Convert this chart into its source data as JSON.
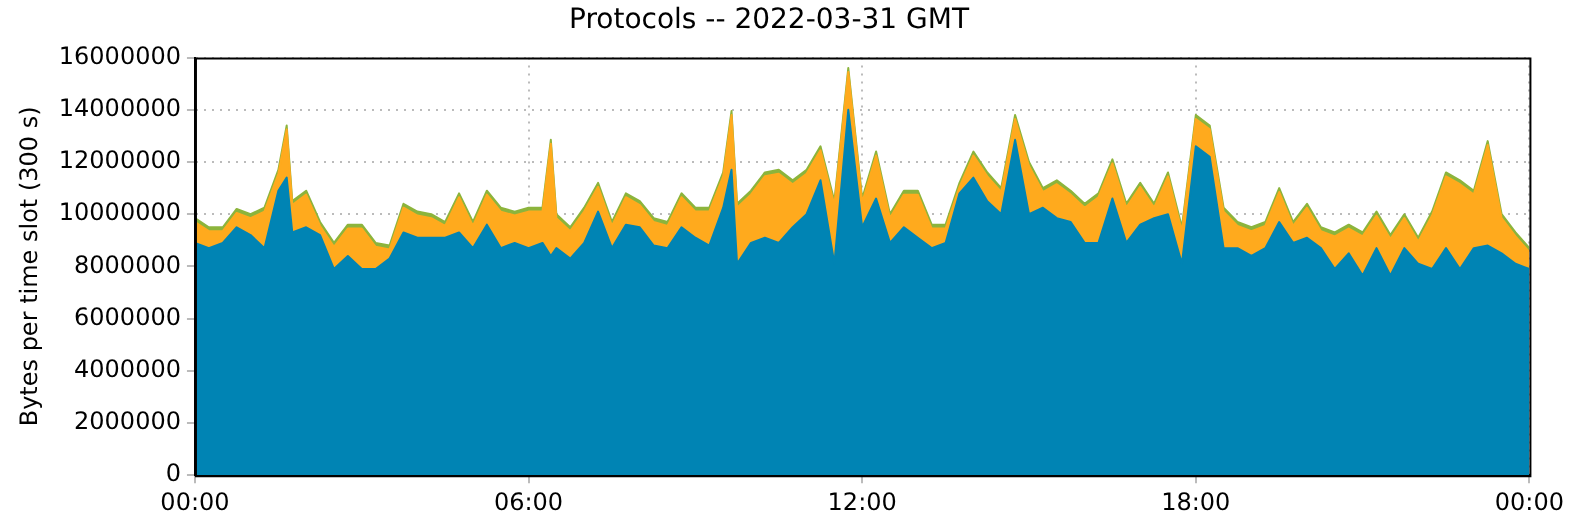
{
  "chart_data": {
    "type": "area",
    "title": "Protocols -- 2022-03-31 GMT",
    "ylabel": "Bytes per time slot (300 s)",
    "stacked": true,
    "grid": true,
    "x": [
      0,
      0.25,
      0.5,
      0.75,
      1,
      1.25,
      1.5,
      1.65,
      1.75,
      2,
      2.25,
      2.5,
      2.75,
      3,
      3.25,
      3.5,
      3.75,
      4,
      4.25,
      4.5,
      4.75,
      5,
      5.25,
      5.5,
      5.75,
      6,
      6.25,
      6.4,
      6.5,
      6.75,
      7,
      7.25,
      7.5,
      7.75,
      8,
      8.25,
      8.5,
      8.75,
      9,
      9.25,
      9.5,
      9.65,
      9.75,
      10,
      10.25,
      10.5,
      10.75,
      11,
      11.25,
      11.5,
      11.75,
      12,
      12.25,
      12.5,
      12.75,
      13,
      13.25,
      13.5,
      13.75,
      14,
      14.25,
      14.5,
      14.75,
      15,
      15.25,
      15.5,
      15.75,
      16,
      16.25,
      16.5,
      16.75,
      17,
      17.25,
      17.5,
      17.75,
      18,
      18.25,
      18.5,
      18.75,
      19,
      19.25,
      19.5,
      19.75,
      20,
      20.25,
      20.5,
      20.75,
      21,
      21.25,
      21.5,
      21.75,
      22,
      22.25,
      22.5,
      22.75,
      23,
      23.25,
      23.5,
      23.75,
      24
    ],
    "series": [
      {
        "color": "#0084b4",
        "values": [
          8900000,
          8700000,
          8900000,
          9500000,
          9200000,
          8700000,
          10900000,
          11400000,
          9300000,
          9500000,
          9200000,
          7900000,
          8400000,
          7900000,
          7900000,
          8300000,
          9300000,
          9100000,
          9100000,
          9100000,
          9300000,
          8700000,
          9600000,
          8700000,
          8900000,
          8700000,
          8900000,
          8400000,
          8700000,
          8300000,
          8900000,
          10100000,
          8700000,
          9600000,
          9500000,
          8800000,
          8700000,
          9500000,
          9100000,
          8800000,
          10250000,
          11700000,
          8100000,
          8900000,
          9100000,
          8900000,
          9500000,
          10000000,
          11300000,
          8100000,
          14000000,
          9500000,
          10600000,
          8900000,
          9500000,
          9100000,
          8700000,
          8900000,
          10800000,
          11400000,
          10500000,
          10000000,
          12850000,
          10000000,
          10250000,
          9850000,
          9700000,
          8900000,
          8900000,
          10600000,
          8900000,
          9600000,
          9850000,
          10000000,
          8100000,
          12600000,
          12200000,
          8700000,
          8700000,
          8400000,
          8700000,
          9700000,
          8900000,
          9100000,
          8700000,
          7900000,
          8500000,
          7650000,
          8700000,
          7650000,
          8700000,
          8100000,
          7900000,
          8700000,
          7900000,
          8700000,
          8800000,
          8500000,
          8100000,
          7900000
        ]
      },
      {
        "color": "#ffaa1d",
        "values": [
          800000,
          650000,
          450000,
          550000,
          650000,
          1400000,
          650000,
          1850000,
          1050000,
          1250000,
          350000,
          850000,
          1050000,
          1550000,
          850000,
          350000,
          950000,
          850000,
          750000,
          450000,
          1350000,
          850000,
          1150000,
          1400000,
          1050000,
          1400000,
          1200000,
          4300000,
          1150000,
          1050000,
          1200000,
          950000,
          850000,
          1050000,
          850000,
          900000,
          850000,
          1150000,
          1000000,
          1300000,
          1200000,
          2100000,
          2150000,
          1850000,
          2350000,
          2650000,
          1650000,
          1550000,
          1150000,
          2250000,
          1450000,
          950000,
          1650000,
          950000,
          1250000,
          1650000,
          750000,
          550000,
          250000,
          850000,
          950000,
          850000,
          800000,
          1850000,
          600000,
          1300000,
          1050000,
          1350000,
          1750000,
          1350000,
          1350000,
          1450000,
          400000,
          1450000,
          1250000,
          1050000,
          1050000,
          1400000,
          850000,
          950000,
          850000,
          1150000,
          650000,
          1150000,
          650000,
          1250000,
          950000,
          1500000,
          1250000,
          1400000,
          1150000,
          850000,
          2050000,
          2750000,
          3250000,
          2050000,
          3850000,
          1350000,
          1050000,
          650000
        ]
      },
      {
        "color": "#8cb43c",
        "values": [
          150000,
          150000,
          150000,
          150000,
          150000,
          150000,
          150000,
          150000,
          150000,
          150000,
          150000,
          150000,
          150000,
          150000,
          150000,
          150000,
          150000,
          150000,
          150000,
          150000,
          150000,
          150000,
          150000,
          150000,
          150000,
          150000,
          150000,
          150000,
          150000,
          150000,
          150000,
          150000,
          150000,
          150000,
          150000,
          150000,
          150000,
          150000,
          150000,
          150000,
          150000,
          150000,
          150000,
          150000,
          150000,
          150000,
          150000,
          150000,
          150000,
          150000,
          150000,
          150000,
          150000,
          150000,
          150000,
          150000,
          150000,
          150000,
          150000,
          150000,
          150000,
          150000,
          150000,
          150000,
          150000,
          150000,
          150000,
          150000,
          150000,
          150000,
          150000,
          150000,
          150000,
          150000,
          150000,
          150000,
          150000,
          150000,
          150000,
          150000,
          150000,
          150000,
          150000,
          150000,
          150000,
          150000,
          150000,
          150000,
          150000,
          150000,
          150000,
          150000,
          150000,
          150000,
          150000,
          150000,
          150000,
          150000,
          150000,
          150000
        ]
      }
    ],
    "xlim": [
      0,
      24
    ],
    "xticks": [
      {
        "value": 0,
        "label": "00:00"
      },
      {
        "value": 6,
        "label": "06:00"
      },
      {
        "value": 12,
        "label": "12:00"
      },
      {
        "value": 18,
        "label": "18:00"
      },
      {
        "value": 24,
        "label": "00:00"
      }
    ],
    "ylim": [
      0,
      16000000
    ],
    "yticks": [
      0,
      2000000,
      4000000,
      6000000,
      8000000,
      10000000,
      12000000,
      14000000,
      16000000
    ]
  }
}
